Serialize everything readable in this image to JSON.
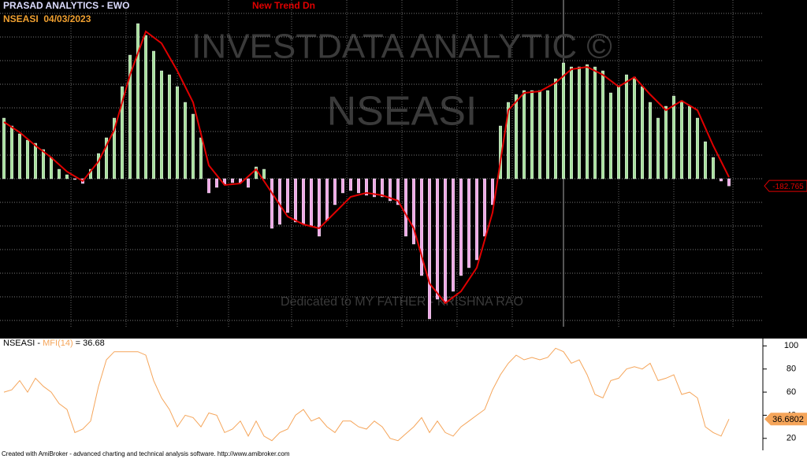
{
  "header": {
    "title": "PRASAD ANALYTICS - EWO",
    "symbol_date": "NSEASI  04/03/2023",
    "signal_text": "New Trend Dn"
  },
  "watermark": {
    "line1": "INVESTDATA ANALYTIC ©",
    "line2": "NSEASI",
    "dedication": "Dedicated to MY FATHER - KRISHNA RAO"
  },
  "chart_data": [
    {
      "type": "bar",
      "xlim": [
        -0.5,
        97.5
      ],
      "ylim": [
        -3820,
        4540
      ],
      "ygrid": [
        -3600,
        -3000,
        -2400,
        -1800,
        -1200,
        -600,
        0,
        600,
        1200,
        1800,
        2400,
        3000,
        3600,
        4200
      ],
      "histogram": {
        "positive_color": "#a6e09c",
        "negative_color": "#eea6e6",
        "values": [
          1540,
          1340,
          1140,
          980,
          900,
          740,
          540,
          240,
          100,
          -20,
          -120,
          240,
          640,
          1040,
          1540,
          2340,
          3140,
          3940,
          3640,
          3240,
          2740,
          2640,
          2340,
          1940,
          1640,
          1040,
          -360,
          -220,
          -140,
          -100,
          -100,
          -220,
          300,
          240,
          -1260,
          -1160,
          -860,
          -1100,
          -1160,
          -1220,
          -1460,
          -1060,
          -660,
          -360,
          -300,
          -360,
          -420,
          -460,
          -460,
          -560,
          -660,
          -1460,
          -1660,
          -2460,
          -3560,
          -3060,
          -3160,
          -2860,
          -2460,
          -2260,
          -2060,
          -1460,
          -660,
          1340,
          1940,
          2140,
          2240,
          2240,
          2240,
          2240,
          2540,
          2940,
          2840,
          2840,
          2900,
          2840,
          2740,
          2180,
          2340,
          2640,
          2580,
          2340,
          1940,
          1540,
          1840,
          2100,
          1980,
          1840,
          1540,
          940,
          540,
          -60,
          -182.765
        ]
      },
      "signal": {
        "color": "#e00000",
        "x": [
          0,
          2,
          4,
          6,
          8,
          10,
          12,
          14,
          16,
          18,
          20,
          22,
          24,
          26,
          28,
          30,
          32,
          34,
          36,
          38,
          40,
          42,
          44,
          46,
          48,
          50,
          52,
          54,
          56,
          58,
          60,
          62,
          64,
          66,
          68,
          70,
          72,
          74,
          76,
          78,
          80,
          82,
          84,
          86,
          88,
          90,
          92
        ],
        "values": [
          1440,
          1180,
          840,
          540,
          180,
          -60,
          440,
          1240,
          2640,
          3740,
          3440,
          2740,
          1940,
          340,
          -160,
          -120,
          240,
          -360,
          -960,
          -1160,
          -1260,
          -860,
          -460,
          -360,
          -420,
          -560,
          -1260,
          -2660,
          -3160,
          -2860,
          -2260,
          -860,
          1740,
          2180,
          2220,
          2440,
          2780,
          2840,
          2640,
          2340,
          2580,
          2140,
          1740,
          1980,
          1740,
          840,
          40
        ]
      }
    },
    {
      "type": "line",
      "legend": {
        "symbol": "NSEASI - ",
        "indicator": "MFI(14)",
        "value_text": " = 36.68"
      },
      "color": "#f5a55a",
      "xlim": [
        -0.5,
        97.5
      ],
      "ylim": [
        11,
        105
      ],
      "yticks": [
        20,
        40,
        60,
        80,
        100
      ],
      "values": [
        60,
        62,
        70,
        60,
        72,
        65,
        60,
        50,
        45,
        25,
        28,
        35,
        65,
        88,
        95,
        95,
        95,
        95,
        92,
        70,
        55,
        45,
        30,
        40,
        38,
        30,
        42,
        40,
        25,
        28,
        35,
        22,
        35,
        22,
        18,
        25,
        28,
        40,
        45,
        35,
        38,
        30,
        25,
        35,
        35,
        30,
        28,
        35,
        30,
        20,
        18,
        24,
        30,
        38,
        25,
        35,
        25,
        22,
        30,
        35,
        40,
        45,
        62,
        75,
        85,
        92,
        88,
        90,
        88,
        90,
        98,
        95,
        85,
        88,
        75,
        58,
        55,
        70,
        72,
        80,
        82,
        80,
        85,
        70,
        72,
        75,
        58,
        60,
        55,
        30,
        25,
        22,
        36.6802
      ]
    }
  ],
  "footer": "Created with AmiBroker - advanced charting and technical analysis software. http://www.amibroker.com"
}
